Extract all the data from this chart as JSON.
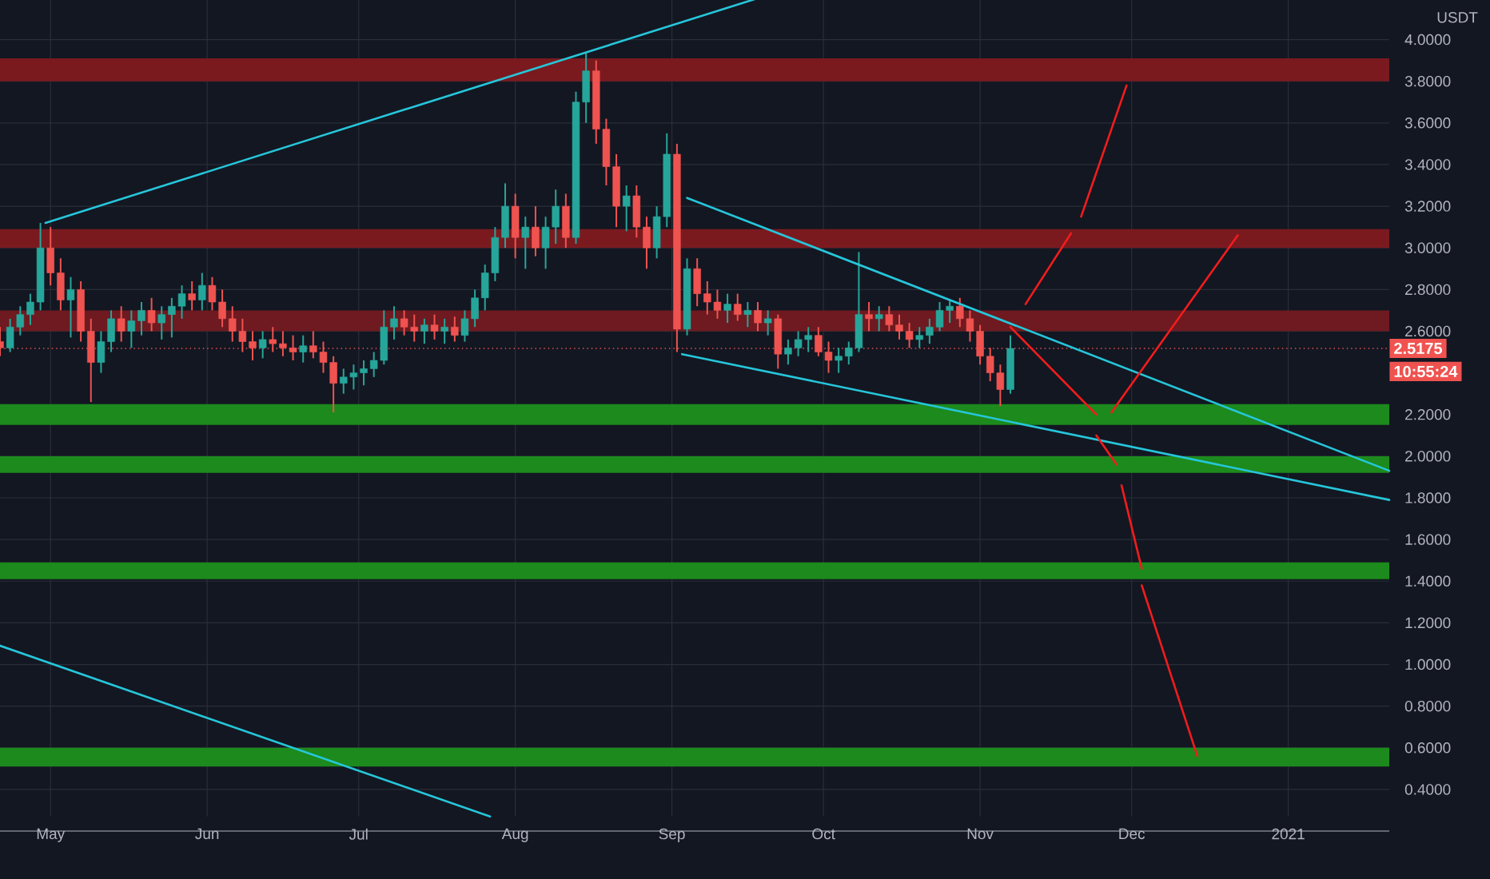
{
  "chart_data": {
    "type": "candlestick",
    "x": [
      "2020-04-21",
      "2020-04-23",
      "2020-04-25",
      "2020-04-27",
      "2020-04-29",
      "2020-05-01",
      "2020-05-03",
      "2020-05-05",
      "2020-05-07",
      "2020-05-09",
      "2020-05-11",
      "2020-05-13",
      "2020-05-15",
      "2020-05-17",
      "2020-05-19",
      "2020-05-21",
      "2020-05-23",
      "2020-05-25",
      "2020-05-27",
      "2020-05-29",
      "2020-05-31",
      "2020-06-02",
      "2020-06-04",
      "2020-06-06",
      "2020-06-08",
      "2020-06-10",
      "2020-06-12",
      "2020-06-14",
      "2020-06-16",
      "2020-06-18",
      "2020-06-20",
      "2020-06-22",
      "2020-06-24",
      "2020-06-26",
      "2020-06-28",
      "2020-06-30",
      "2020-07-02",
      "2020-07-04",
      "2020-07-06",
      "2020-07-08",
      "2020-07-10",
      "2020-07-12",
      "2020-07-14",
      "2020-07-16",
      "2020-07-18",
      "2020-07-20",
      "2020-07-22",
      "2020-07-24",
      "2020-07-26",
      "2020-07-28",
      "2020-07-30",
      "2020-08-01",
      "2020-08-03",
      "2020-08-05",
      "2020-08-07",
      "2020-08-09",
      "2020-08-11",
      "2020-08-13",
      "2020-08-15",
      "2020-08-17",
      "2020-08-19",
      "2020-08-21",
      "2020-08-23",
      "2020-08-25",
      "2020-08-27",
      "2020-08-29",
      "2020-08-31",
      "2020-09-02",
      "2020-09-04",
      "2020-09-06",
      "2020-09-08",
      "2020-09-10",
      "2020-09-12",
      "2020-09-14",
      "2020-09-16",
      "2020-09-18",
      "2020-09-20",
      "2020-09-22",
      "2020-09-24",
      "2020-09-26",
      "2020-09-28",
      "2020-09-30",
      "2020-10-02",
      "2020-10-04",
      "2020-10-06",
      "2020-10-08",
      "2020-10-10",
      "2020-10-12",
      "2020-10-14",
      "2020-10-16",
      "2020-10-18",
      "2020-10-20",
      "2020-10-22",
      "2020-10-24",
      "2020-10-26",
      "2020-10-28",
      "2020-10-30",
      "2020-11-01",
      "2020-11-03",
      "2020-11-05",
      "2020-11-07"
    ],
    "ohlc": [
      [
        2.55,
        2.62,
        2.48,
        2.52
      ],
      [
        2.52,
        2.66,
        2.5,
        2.62
      ],
      [
        2.62,
        2.72,
        2.58,
        2.68
      ],
      [
        2.68,
        2.78,
        2.63,
        2.74
      ],
      [
        2.74,
        3.12,
        2.7,
        3.0
      ],
      [
        3.0,
        3.1,
        2.82,
        2.88
      ],
      [
        2.88,
        2.95,
        2.7,
        2.75
      ],
      [
        2.75,
        2.86,
        2.57,
        2.8
      ],
      [
        2.8,
        2.84,
        2.55,
        2.6
      ],
      [
        2.6,
        2.66,
        2.26,
        2.45
      ],
      [
        2.45,
        2.6,
        2.4,
        2.55
      ],
      [
        2.55,
        2.7,
        2.5,
        2.66
      ],
      [
        2.66,
        2.72,
        2.55,
        2.6
      ],
      [
        2.6,
        2.7,
        2.52,
        2.65
      ],
      [
        2.65,
        2.74,
        2.58,
        2.7
      ],
      [
        2.7,
        2.76,
        2.6,
        2.64
      ],
      [
        2.64,
        2.72,
        2.56,
        2.68
      ],
      [
        2.68,
        2.76,
        2.57,
        2.72
      ],
      [
        2.72,
        2.82,
        2.66,
        2.78
      ],
      [
        2.78,
        2.84,
        2.7,
        2.75
      ],
      [
        2.75,
        2.88,
        2.7,
        2.82
      ],
      [
        2.82,
        2.86,
        2.7,
        2.74
      ],
      [
        2.74,
        2.8,
        2.62,
        2.66
      ],
      [
        2.66,
        2.72,
        2.55,
        2.6
      ],
      [
        2.6,
        2.66,
        2.5,
        2.55
      ],
      [
        2.55,
        2.6,
        2.46,
        2.52
      ],
      [
        2.52,
        2.6,
        2.47,
        2.56
      ],
      [
        2.56,
        2.62,
        2.5,
        2.54
      ],
      [
        2.54,
        2.6,
        2.48,
        2.52
      ],
      [
        2.52,
        2.58,
        2.46,
        2.5
      ],
      [
        2.5,
        2.58,
        2.45,
        2.53
      ],
      [
        2.53,
        2.6,
        2.47,
        2.5
      ],
      [
        2.5,
        2.55,
        2.4,
        2.45
      ],
      [
        2.45,
        2.48,
        2.21,
        2.35
      ],
      [
        2.35,
        2.42,
        2.3,
        2.38
      ],
      [
        2.38,
        2.44,
        2.32,
        2.4
      ],
      [
        2.4,
        2.46,
        2.34,
        2.42
      ],
      [
        2.42,
        2.5,
        2.38,
        2.46
      ],
      [
        2.46,
        2.7,
        2.44,
        2.62
      ],
      [
        2.62,
        2.72,
        2.56,
        2.66
      ],
      [
        2.66,
        2.7,
        2.58,
        2.62
      ],
      [
        2.62,
        2.68,
        2.55,
        2.6
      ],
      [
        2.6,
        2.66,
        2.54,
        2.63
      ],
      [
        2.63,
        2.68,
        2.56,
        2.6
      ],
      [
        2.6,
        2.66,
        2.54,
        2.62
      ],
      [
        2.62,
        2.67,
        2.55,
        2.58
      ],
      [
        2.58,
        2.7,
        2.55,
        2.66
      ],
      [
        2.66,
        2.8,
        2.62,
        2.76
      ],
      [
        2.76,
        2.92,
        2.7,
        2.88
      ],
      [
        2.88,
        3.1,
        2.84,
        3.05
      ],
      [
        3.05,
        3.31,
        3.0,
        3.2
      ],
      [
        3.2,
        3.26,
        2.95,
        3.05
      ],
      [
        3.05,
        3.15,
        2.9,
        3.1
      ],
      [
        3.1,
        3.2,
        2.96,
        3.0
      ],
      [
        3.0,
        3.15,
        2.9,
        3.1
      ],
      [
        3.1,
        3.28,
        3.02,
        3.2
      ],
      [
        3.2,
        3.26,
        3.0,
        3.05
      ],
      [
        3.05,
        3.75,
        3.02,
        3.7
      ],
      [
        3.7,
        3.94,
        3.6,
        3.85
      ],
      [
        3.85,
        3.9,
        3.5,
        3.57
      ],
      [
        3.57,
        3.62,
        3.3,
        3.39
      ],
      [
        3.39,
        3.45,
        3.1,
        3.2
      ],
      [
        3.2,
        3.3,
        3.08,
        3.25
      ],
      [
        3.25,
        3.3,
        3.05,
        3.1
      ],
      [
        3.1,
        3.15,
        2.9,
        3.0
      ],
      [
        3.0,
        3.2,
        2.95,
        3.15
      ],
      [
        3.15,
        3.55,
        3.1,
        3.45
      ],
      [
        3.45,
        3.5,
        2.5,
        2.61
      ],
      [
        2.61,
        2.95,
        2.58,
        2.9
      ],
      [
        2.9,
        2.95,
        2.72,
        2.78
      ],
      [
        2.78,
        2.84,
        2.68,
        2.74
      ],
      [
        2.74,
        2.8,
        2.66,
        2.7
      ],
      [
        2.7,
        2.78,
        2.64,
        2.73
      ],
      [
        2.73,
        2.78,
        2.65,
        2.68
      ],
      [
        2.68,
        2.74,
        2.62,
        2.7
      ],
      [
        2.7,
        2.74,
        2.6,
        2.64
      ],
      [
        2.64,
        2.7,
        2.58,
        2.66
      ],
      [
        2.66,
        2.68,
        2.42,
        2.49
      ],
      [
        2.49,
        2.56,
        2.44,
        2.52
      ],
      [
        2.52,
        2.6,
        2.48,
        2.56
      ],
      [
        2.56,
        2.62,
        2.5,
        2.58
      ],
      [
        2.58,
        2.62,
        2.48,
        2.5
      ],
      [
        2.5,
        2.55,
        2.4,
        2.46
      ],
      [
        2.46,
        2.52,
        2.4,
        2.48
      ],
      [
        2.48,
        2.55,
        2.44,
        2.52
      ],
      [
        2.52,
        2.98,
        2.5,
        2.68
      ],
      [
        2.68,
        2.74,
        2.6,
        2.66
      ],
      [
        2.66,
        2.72,
        2.6,
        2.68
      ],
      [
        2.68,
        2.72,
        2.6,
        2.63
      ],
      [
        2.63,
        2.68,
        2.56,
        2.6
      ],
      [
        2.6,
        2.64,
        2.52,
        2.56
      ],
      [
        2.56,
        2.62,
        2.52,
        2.58
      ],
      [
        2.58,
        2.66,
        2.54,
        2.62
      ],
      [
        2.62,
        2.74,
        2.6,
        2.7
      ],
      [
        2.7,
        2.75,
        2.64,
        2.72
      ],
      [
        2.72,
        2.76,
        2.62,
        2.66
      ],
      [
        2.66,
        2.7,
        2.55,
        2.6
      ],
      [
        2.6,
        2.63,
        2.44,
        2.48
      ],
      [
        2.48,
        2.52,
        2.36,
        2.4
      ],
      [
        2.4,
        2.44,
        2.24,
        2.32
      ],
      [
        2.32,
        2.58,
        2.3,
        2.5175
      ]
    ],
    "series": [
      {
        "type": "line",
        "color": "#26c6da",
        "x": [
          "2020-04-30",
          "2020-09-26"
        ],
        "values": [
          3.12,
          4.26
        ]
      },
      {
        "type": "line",
        "color": "#26c6da",
        "x": [
          "2020-09-04",
          "2021-01-21"
        ],
        "values": [
          3.24,
          1.93
        ]
      },
      {
        "type": "line",
        "color": "#26c6da",
        "x": [
          "2020-09-03",
          "2021-01-21"
        ],
        "values": [
          2.49,
          1.79
        ]
      },
      {
        "type": "line",
        "color": "#26c6da",
        "x": [
          "2020-04-21",
          "2020-07-27"
        ],
        "values": [
          1.09,
          0.27
        ]
      },
      {
        "type": "line",
        "color": "#f21c1c",
        "x": [
          "2020-11-10",
          "2020-11-19"
        ],
        "values": [
          2.73,
          3.07
        ]
      },
      {
        "type": "line",
        "color": "#f21c1c",
        "x": [
          "2020-11-21",
          "2020-11-30"
        ],
        "values": [
          3.15,
          3.78
        ]
      },
      {
        "type": "line",
        "color": "#f21c1c",
        "x": [
          "2020-11-07",
          "2020-11-24"
        ],
        "values": [
          2.62,
          2.2
        ]
      },
      {
        "type": "line",
        "color": "#f21c1c",
        "x": [
          "2020-11-27",
          "2020-12-22"
        ],
        "values": [
          2.21,
          3.06
        ]
      },
      {
        "type": "line",
        "color": "#f21c1c",
        "x": [
          "2020-11-24",
          "2020-11-28"
        ],
        "values": [
          2.1,
          1.96
        ]
      },
      {
        "type": "line",
        "color": "#f21c1c",
        "x": [
          "2020-11-29",
          "2020-12-03"
        ],
        "values": [
          1.86,
          1.46
        ]
      },
      {
        "type": "line",
        "color": "#f21c1c",
        "x": [
          "2020-12-03",
          "2020-12-14"
        ],
        "values": [
          1.38,
          0.56
        ]
      }
    ],
    "bands": [
      {
        "axis": "y",
        "from": 3.8,
        "to": 3.91,
        "color": "#7a1a1f"
      },
      {
        "axis": "y",
        "from": 3.0,
        "to": 3.09,
        "color": "#7a1a1f"
      },
      {
        "axis": "y",
        "from": 2.6,
        "to": 2.7,
        "color": "#6e1a20"
      },
      {
        "axis": "y",
        "from": 2.15,
        "to": 2.25,
        "color": "#1c8a1c"
      },
      {
        "axis": "y",
        "from": 1.92,
        "to": 2.0,
        "color": "#1c8a1c"
      },
      {
        "axis": "y",
        "from": 1.41,
        "to": 1.49,
        "color": "#1c8a1c"
      },
      {
        "axis": "y",
        "from": 0.51,
        "to": 0.6,
        "color": "#1c8a1c"
      }
    ],
    "ref_lines": [
      {
        "axis": "y",
        "value": 2.5175,
        "label": "2.5175",
        "color": "#f05350",
        "line_style": "dotted"
      }
    ],
    "annotations": [
      "USDT",
      "10:55:24"
    ],
    "xlim": [
      "2020-04-21",
      "2021-01-21"
    ],
    "xticks": [
      {
        "value": "2020-05-01",
        "label": "May"
      },
      {
        "value": "2020-06-01",
        "label": "Jun"
      },
      {
        "value": "2020-07-01",
        "label": "Jul"
      },
      {
        "value": "2020-08-01",
        "label": "Aug"
      },
      {
        "value": "2020-09-01",
        "label": "Sep"
      },
      {
        "value": "2020-10-01",
        "label": "Oct"
      },
      {
        "value": "2020-11-01",
        "label": "Nov"
      },
      {
        "value": "2020-12-01",
        "label": "Dec"
      },
      {
        "value": "2021-01-01",
        "label": "2021"
      }
    ],
    "ylim": [
      0.27,
      4.26
    ],
    "yticks": [
      {
        "value": 0.4,
        "label": "0.4000"
      },
      {
        "value": 0.6,
        "label": "0.6000"
      },
      {
        "value": 0.8,
        "label": "0.8000"
      },
      {
        "value": 1.0,
        "label": "1.0000"
      },
      {
        "value": 1.2,
        "label": "1.2000"
      },
      {
        "value": 1.4,
        "label": "1.4000"
      },
      {
        "value": 1.6,
        "label": "1.6000"
      },
      {
        "value": 1.8,
        "label": "1.8000"
      },
      {
        "value": 2.0,
        "label": "2.0000"
      },
      {
        "value": 2.2,
        "label": "2.2000"
      },
      {
        "value": 2.6,
        "label": "2.6000"
      },
      {
        "value": 2.8,
        "label": "2.8000"
      },
      {
        "value": 3.0,
        "label": "3.0000"
      },
      {
        "value": 3.2,
        "label": "3.2000"
      },
      {
        "value": 3.4,
        "label": "3.4000"
      },
      {
        "value": 3.6,
        "label": "3.6000"
      },
      {
        "value": 3.8,
        "label": "3.8000"
      },
      {
        "value": 4.0,
        "label": "4.0000"
      }
    ],
    "grid": true
  }
}
